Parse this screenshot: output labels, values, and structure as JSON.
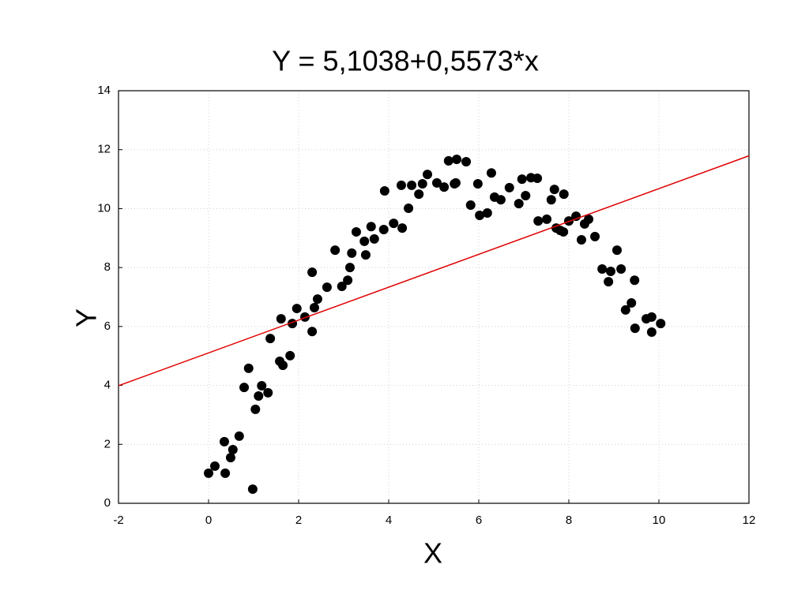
{
  "chart_data": {
    "type": "scatter",
    "title": "Y = 5,1038+0,5573*x",
    "x_label": "X",
    "y_label": "Y",
    "xlim": [
      -2,
      12
    ],
    "ylim": [
      0,
      14
    ],
    "xticks": [
      -2,
      0,
      2,
      4,
      6,
      8,
      10,
      12
    ],
    "yticks": [
      0,
      2,
      4,
      6,
      8,
      10,
      12,
      14
    ],
    "grid": true,
    "fit": {
      "intercept": 5.1038,
      "slope": 0.5573,
      "color": "#e00000"
    },
    "series": [
      {
        "color": "#000000",
        "x": [
          0,
          0.14,
          0.35,
          0.37,
          0.49,
          0.54,
          0.68,
          0.79,
          0.89,
          0.98,
          1.04,
          1.11,
          1.18,
          1.32,
          1.37,
          1.58,
          1.61,
          1.65,
          1.81,
          1.86,
          1.96,
          2.14,
          2.3,
          2.3,
          2.35,
          2.42,
          2.63,
          2.81,
          2.96,
          3.09,
          3.14,
          3.18,
          3.28,
          3.46,
          3.49,
          3.61,
          3.68,
          3.89,
          3.91,
          4.11,
          4.28,
          4.3,
          4.44,
          4.51,
          4.67,
          4.75,
          4.86,
          5.07,
          5.23,
          5.33,
          5.46,
          5.49,
          5.51,
          5.72,
          5.82,
          5.98,
          6.02,
          6.19,
          6.28,
          6.35,
          6.49,
          6.68,
          6.89,
          6.96,
          7.04,
          7.16,
          7.3,
          7.32,
          7.51,
          7.61,
          7.68,
          7.72,
          7.81,
          7.88,
          7.89,
          8.0,
          8.16,
          8.28,
          8.35,
          8.44,
          8.58,
          8.74,
          8.88,
          8.93,
          9.07,
          9.16,
          9.26,
          9.39,
          9.46,
          9.47,
          9.72,
          9.84,
          9.84,
          10.04
        ],
        "values": [
          1.02,
          1.26,
          2.09,
          1.02,
          1.55,
          1.82,
          2.28,
          3.93,
          4.58,
          0.48,
          3.19,
          3.64,
          3.99,
          3.75,
          5.59,
          4.82,
          6.26,
          4.68,
          5.01,
          6.1,
          6.61,
          6.32,
          5.83,
          7.84,
          6.64,
          6.93,
          7.33,
          8.59,
          7.36,
          7.57,
          8.0,
          8.49,
          9.21,
          8.89,
          8.43,
          9.39,
          8.97,
          9.29,
          10.6,
          9.5,
          10.79,
          9.34,
          10.01,
          10.79,
          10.49,
          10.84,
          11.16,
          10.87,
          10.73,
          11.62,
          10.84,
          10.87,
          11.67,
          11.59,
          10.12,
          10.84,
          9.77,
          9.85,
          11.21,
          10.39,
          10.3,
          10.71,
          10.17,
          11.0,
          10.44,
          11.05,
          11.03,
          9.58,
          9.64,
          10.3,
          10.65,
          9.34,
          9.26,
          9.21,
          10.49,
          9.58,
          9.74,
          8.94,
          9.48,
          9.64,
          9.05,
          7.95,
          7.52,
          7.87,
          8.59,
          7.95,
          6.56,
          6.8,
          7.57,
          5.94,
          6.26,
          6.32,
          5.81,
          6.1
        ]
      }
    ]
  }
}
